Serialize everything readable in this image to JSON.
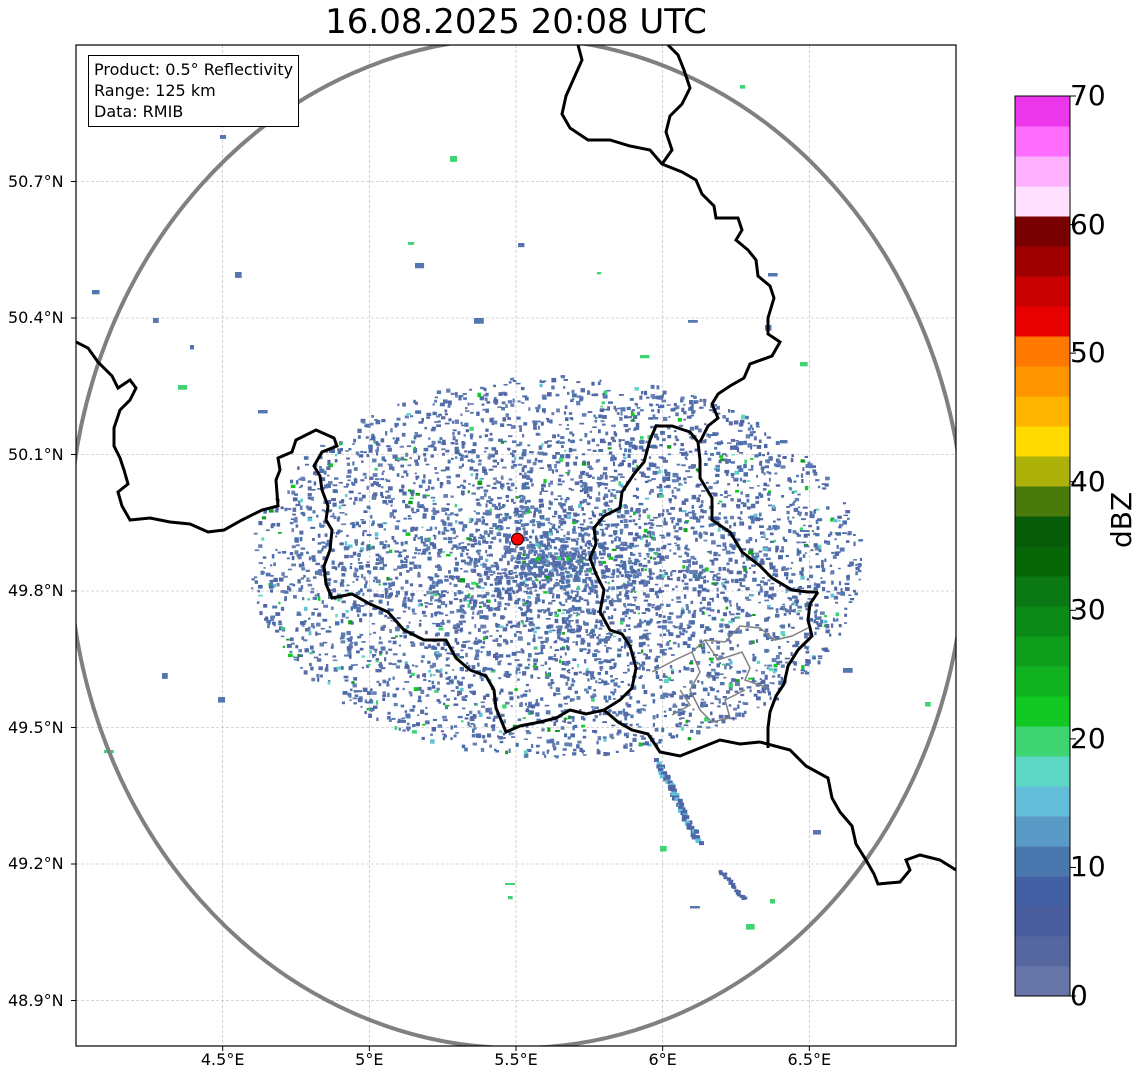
{
  "title": "16.08.2025 20:08 UTC",
  "info": {
    "product": "Product: 0.5° Reflectivity",
    "range": "Range: 125 km",
    "data": "Data: RMIB"
  },
  "map": {
    "lon_range": [
      4.0,
      7.0
    ],
    "lat_range": [
      48.8,
      51.0
    ],
    "radar_site": {
      "lon": 5.505,
      "lat": 49.914,
      "color": "#ff0000"
    },
    "range_ring_color": "#808080",
    "border_color": "#000000",
    "grid": true
  },
  "axes": {
    "y_ticks": [
      {
        "lat": 50.7,
        "label": "50.7°N"
      },
      {
        "lat": 50.4,
        "label": "50.4°N"
      },
      {
        "lat": 50.1,
        "label": "50.1°N"
      },
      {
        "lat": 49.8,
        "label": "49.8°N"
      },
      {
        "lat": 49.5,
        "label": "49.5°N"
      },
      {
        "lat": 49.2,
        "label": "49.2°N"
      },
      {
        "lat": 48.9,
        "label": "48.9°N"
      }
    ],
    "x_ticks": [
      {
        "lon": 4.5,
        "label": "4.5°E"
      },
      {
        "lon": 5.0,
        "label": "5°E"
      },
      {
        "lon": 5.5,
        "label": "5.5°E"
      },
      {
        "lon": 6.0,
        "label": "6°E"
      },
      {
        "lon": 6.5,
        "label": "6.5°E"
      }
    ]
  },
  "colorbar": {
    "label": "dBZ",
    "min": 0,
    "max": 70,
    "ticks": [
      {
        "value": 70,
        "label": "70"
      },
      {
        "value": 60,
        "label": "60"
      },
      {
        "value": 50,
        "label": "50"
      },
      {
        "value": 40,
        "label": "40"
      },
      {
        "value": 30,
        "label": "30"
      },
      {
        "value": 20,
        "label": "20"
      },
      {
        "value": 10,
        "label": "10"
      },
      {
        "value": 0,
        "label": "0"
      }
    ],
    "colors": [
      "#6674a8",
      "#5667a0",
      "#4a5d9e",
      "#4460a4",
      "#4a77ad",
      "#5a9ac6",
      "#62bdd8",
      "#5dd6c4",
      "#3fd472",
      "#12c923",
      "#10b21f",
      "#0f9e1b",
      "#0c8a18",
      "#0a7915",
      "#066608",
      "#075c0a",
      "#4a7a0c",
      "#adb20a",
      "#ffd900",
      "#ffb400",
      "#ff9600",
      "#ff7800",
      "#e60000",
      "#c80000",
      "#a00000",
      "#780000",
      "#ffe0ff",
      "#ffb0ff",
      "#ff6eff",
      "#ec36ec"
    ]
  }
}
